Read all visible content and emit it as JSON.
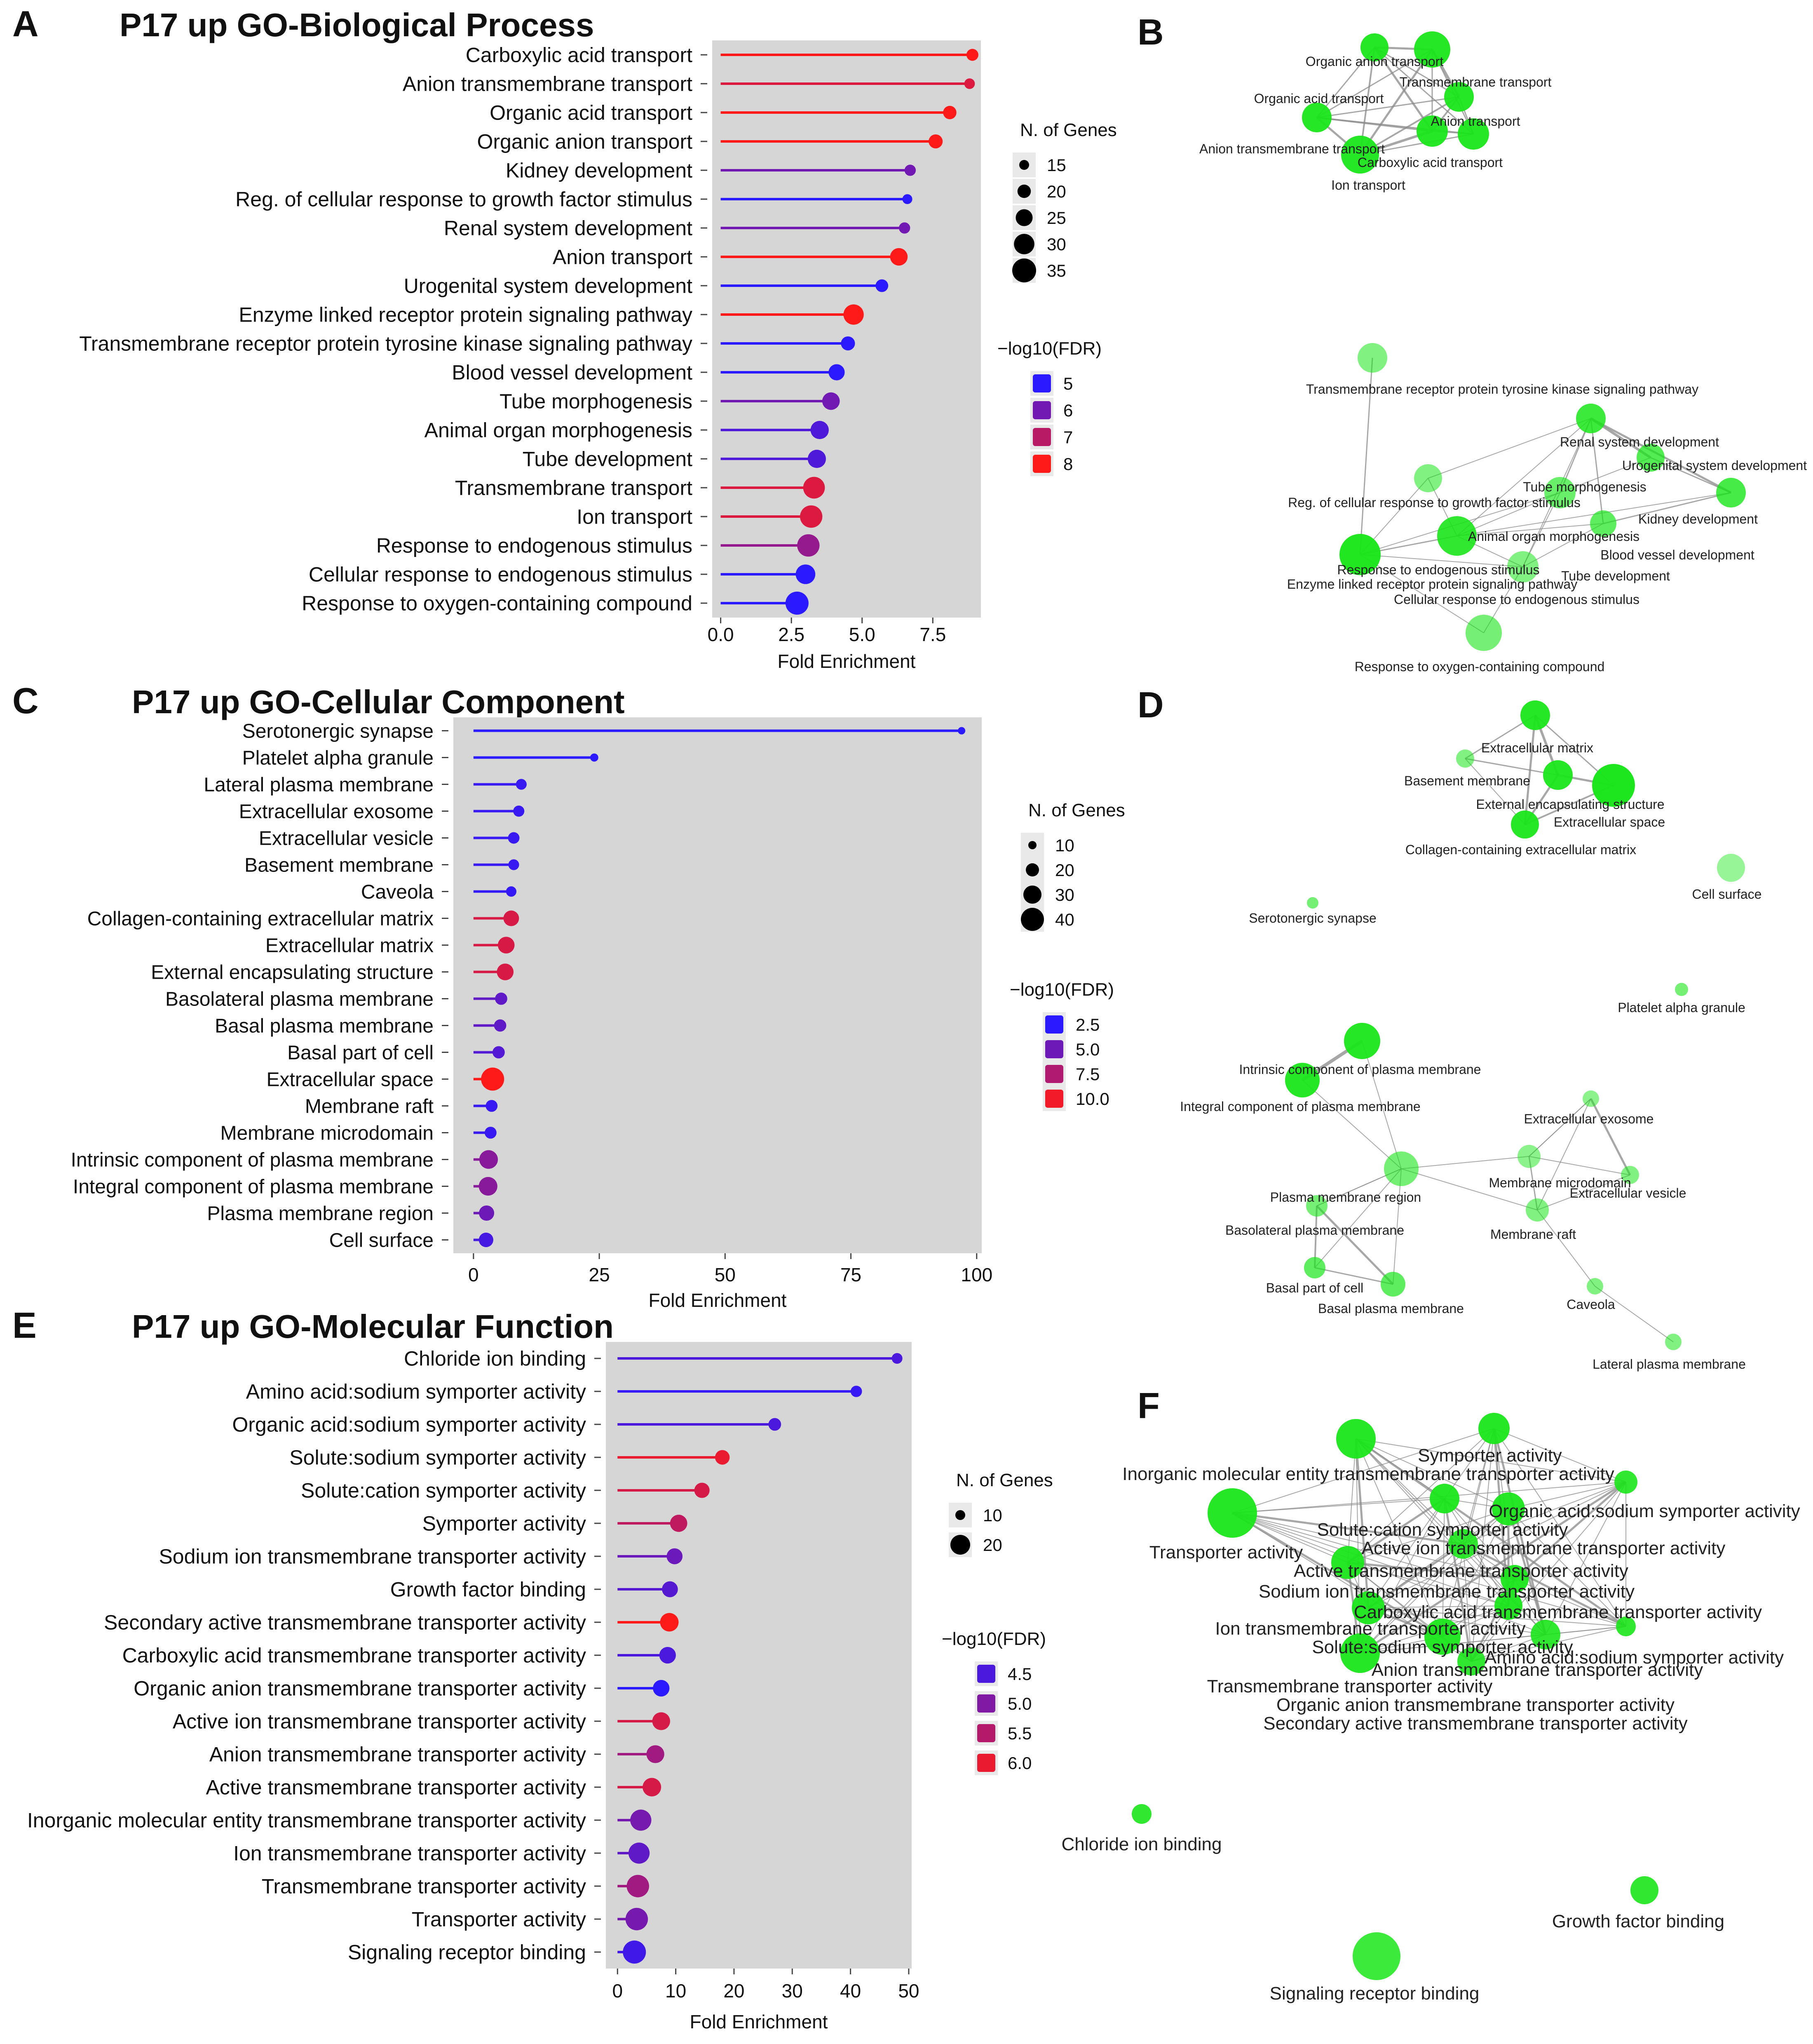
{
  "colors": {
    "panel_bg": "#d6d6d6",
    "node": "#19e619",
    "edge": "#8a8a8a",
    "low": "#2b19ff",
    "high": "#ff1a1a"
  },
  "panel_letters": [
    "A",
    "B",
    "C",
    "D",
    "E",
    "F"
  ],
  "chart_data": [
    {
      "type": "lollipop",
      "panel": "A",
      "title": "P17 up GO-Biological Process",
      "xlabel": "Fold Enrichment",
      "xlim": [
        -0.3,
        9.2
      ],
      "xticks": [
        0.0,
        2.5,
        5.0,
        7.5
      ],
      "xtick_labels": [
        "0.0",
        "2.5",
        "5.0",
        "7.5"
      ],
      "categories": [
        "Carboxylic acid transport",
        "Anion transmembrane transport",
        "Organic acid transport",
        "Organic anion transport",
        "Kidney development",
        "Reg. of cellular response to growth factor stimulus",
        "Renal system development",
        "Anion transport",
        "Urogenital system development",
        "Enzyme linked receptor protein signaling pathway",
        "Transmembrane receptor protein tyrosine kinase signaling pathway",
        "Blood vessel development",
        "Tube morphogenesis",
        "Animal organ morphogenesis",
        "Tube development",
        "Transmembrane transport",
        "Ion transport",
        "Response to endogenous stimulus",
        "Cellular response to endogenous stimulus",
        "Response to oxygen-containing compound"
      ],
      "fold_enrichment": [
        8.9,
        8.8,
        8.1,
        7.6,
        6.7,
        6.6,
        6.5,
        6.3,
        5.7,
        4.7,
        4.5,
        4.1,
        3.9,
        3.5,
        3.4,
        3.3,
        3.2,
        3.1,
        3.0,
        2.7
      ],
      "n_genes": [
        16,
        14,
        18,
        19,
        15,
        13,
        15,
        24,
        17,
        28,
        19,
        22,
        24,
        25,
        25,
        30,
        31,
        31,
        27,
        32
      ],
      "neg_log10_fdr": [
        8.0,
        7.5,
        8.0,
        8.0,
        6.0,
        5.0,
        6.0,
        8.0,
        5.0,
        8.0,
        5.0,
        5.0,
        6.0,
        5.5,
        5.5,
        7.5,
        7.5,
        6.5,
        5.0,
        5.0
      ],
      "size_legend": {
        "title": "N. of Genes",
        "values": [
          15,
          20,
          25,
          30,
          35
        ]
      },
      "color_legend": {
        "title": "−log10(FDR)",
        "values": [
          5,
          6,
          7,
          8
        ],
        "labels": [
          "5",
          "6",
          "7",
          "8"
        ],
        "range": [
          5,
          8
        ]
      }
    },
    {
      "type": "lollipop",
      "panel": "C",
      "title": "P17 up GO-Cellular Component",
      "xlabel": "Fold Enrichment",
      "xlim": [
        -4,
        101
      ],
      "xticks": [
        0,
        25,
        50,
        75,
        100
      ],
      "xtick_labels": [
        "0",
        "25",
        "50",
        "75",
        "100"
      ],
      "categories": [
        "Serotonergic synapse",
        "Platelet alpha granule",
        "Lateral plasma membrane",
        "Extracellular exosome",
        "Extracellular vesicle",
        "Basement membrane",
        "Caveola",
        "Collagen-containing extracellular matrix",
        "Extracellular matrix",
        "External encapsulating structure",
        "Basolateral plasma membrane",
        "Basal plasma membrane",
        "Basal part of cell",
        "Extracellular space",
        "Membrane raft",
        "Membrane microdomain",
        "Intrinsic component of plasma membrane",
        "Integral component of plasma membrane",
        "Plasma membrane region",
        "Cell surface"
      ],
      "fold_enrichment": [
        97,
        24,
        9.5,
        9,
        8,
        8,
        7.5,
        7.5,
        6.5,
        6.3,
        5.5,
        5.3,
        5,
        3.8,
        3.6,
        3.4,
        3,
        2.9,
        2.6,
        2.5
      ],
      "n_genes": [
        3,
        5,
        12,
        13,
        14,
        12,
        11,
        25,
        28,
        28,
        16,
        16,
        16,
        45,
        15,
        15,
        33,
        33,
        24,
        22
      ],
      "neg_log10_fdr": [
        2.5,
        2.5,
        3.0,
        3.0,
        3.0,
        3.0,
        2.8,
        9.0,
        9.0,
        9.0,
        4.5,
        4.5,
        4.0,
        10.5,
        3.0,
        3.0,
        6.0,
        6.0,
        5.0,
        3.5
      ],
      "size_legend": {
        "title": "N. of Genes",
        "values": [
          10,
          20,
          30,
          40
        ]
      },
      "color_legend": {
        "title": "−log10(FDR)",
        "values": [
          2.5,
          5.0,
          7.5,
          10.0
        ],
        "labels": [
          "2.5",
          "5.0",
          "7.5",
          "10.0"
        ],
        "range": [
          2.5,
          10.5
        ]
      }
    },
    {
      "type": "lollipop",
      "panel": "E",
      "title": "P17 up GO-Molecular Function",
      "xlabel": "Fold Enrichment",
      "xlim": [
        -2,
        50.5
      ],
      "xticks": [
        0,
        10,
        20,
        30,
        40,
        50
      ],
      "xtick_labels": [
        "0",
        "10",
        "20",
        "30",
        "40",
        "50"
      ],
      "categories": [
        "Chloride ion binding",
        "Amino acid:sodium symporter activity",
        "Organic acid:sodium symporter activity",
        "Solute:sodium symporter activity",
        "Solute:cation symporter activity",
        "Symporter activity",
        "Sodium ion transmembrane transporter activity",
        "Growth factor binding",
        "Secondary active transmembrane transporter activity",
        "Carboxylic acid transmembrane transporter activity",
        "Organic anion transmembrane transporter activity",
        "Active ion transmembrane transporter activity",
        "Anion transmembrane transporter activity",
        "Active transmembrane transporter activity",
        "Inorganic molecular entity transmembrane transporter activity",
        "Ion transmembrane transporter activity",
        "Transmembrane transporter activity",
        "Transporter activity",
        "Signaling receptor binding"
      ],
      "fold_enrichment": [
        48,
        41,
        27,
        18,
        14.5,
        10.5,
        9.8,
        9,
        8.9,
        8.6,
        7.5,
        7.5,
        6.5,
        5.9,
        4,
        3.7,
        3.5,
        3.3,
        2.9
      ],
      "n_genes": [
        4,
        5,
        7,
        10,
        11,
        14,
        12,
        12,
        16,
        13,
        13,
        15,
        15,
        16,
        20,
        20,
        22,
        22,
        23
      ],
      "neg_log10_fdr": [
        4.5,
        4.3,
        4.5,
        6.0,
        5.8,
        5.6,
        4.8,
        4.6,
        6.2,
        4.5,
        4.2,
        5.8,
        5.3,
        5.8,
        4.9,
        4.7,
        5.3,
        4.9,
        4.4
      ],
      "size_legend": {
        "title": "N. of Genes",
        "values": [
          10,
          20
        ]
      },
      "color_legend": {
        "title": "−log10(FDR)",
        "values": [
          4.5,
          5.0,
          5.5,
          6.0
        ],
        "labels": [
          "4.5",
          "5.0",
          "5.5",
          "6.0"
        ],
        "range": [
          4.2,
          6.2
        ]
      }
    }
  ],
  "networks": {
    "B": {
      "labels": [
        "Organic anion transport",
        "Transmembrane transport",
        "Organic acid transport",
        "Anion transport",
        "Anion transmembrane transport",
        "Carboxylic acid transport",
        "Ion transport",
        "Transmembrane receptor protein tyrosine kinase signaling pathway",
        "Renal system development",
        "Urogenital system development",
        "Tube morphogenesis",
        "Reg. of cellular response to growth factor stimulus",
        "Kidney development",
        "Animal organ morphogenesis",
        "Blood vessel development",
        "Response to endogenous stimulus",
        "Tube development",
        "Enzyme linked receptor protein signaling pathway",
        "Cellular response to endogenous stimulus",
        "Response to oxygen-containing compound"
      ]
    },
    "D": {
      "labels": [
        "Extracellular matrix",
        "Basement membrane",
        "External encapsulating structure",
        "Extracellular space",
        "Collagen-containing extracellular matrix",
        "Cell surface",
        "Serotonergic synapse",
        "Platelet alpha granule",
        "Intrinsic component of plasma membrane",
        "Integral component of plasma membrane",
        "Extracellular exosome",
        "Membrane microdomain",
        "Plasma membrane region",
        "Extracellular vesicle",
        "Basolateral plasma membrane",
        "Membrane raft",
        "Basal part of cell",
        "Basal plasma membrane",
        "Caveola",
        "Lateral plasma membrane"
      ]
    },
    "F": {
      "labels": [
        "Symporter activity",
        "Inorganic molecular entity transmembrane transporter activity",
        "Organic acid:sodium symporter activity",
        "Solute:cation symporter activity",
        "Transporter activity",
        "Active ion transmembrane transporter activity",
        "Active transmembrane transporter activity",
        "Sodium ion transmembrane transporter activity",
        "Carboxylic acid transmembrane transporter activity",
        "Ion transmembrane transporter activity",
        "Solute:sodium symporter activity",
        "Amino acid:sodium symporter activity",
        "Anion transmembrane transporter activity",
        "Transmembrane transporter activity",
        "Organic anion transmembrane transporter activity",
        "Secondary active transmembrane transporter activity",
        "Chloride ion binding",
        "Growth factor binding",
        "Signaling receptor binding"
      ]
    }
  }
}
